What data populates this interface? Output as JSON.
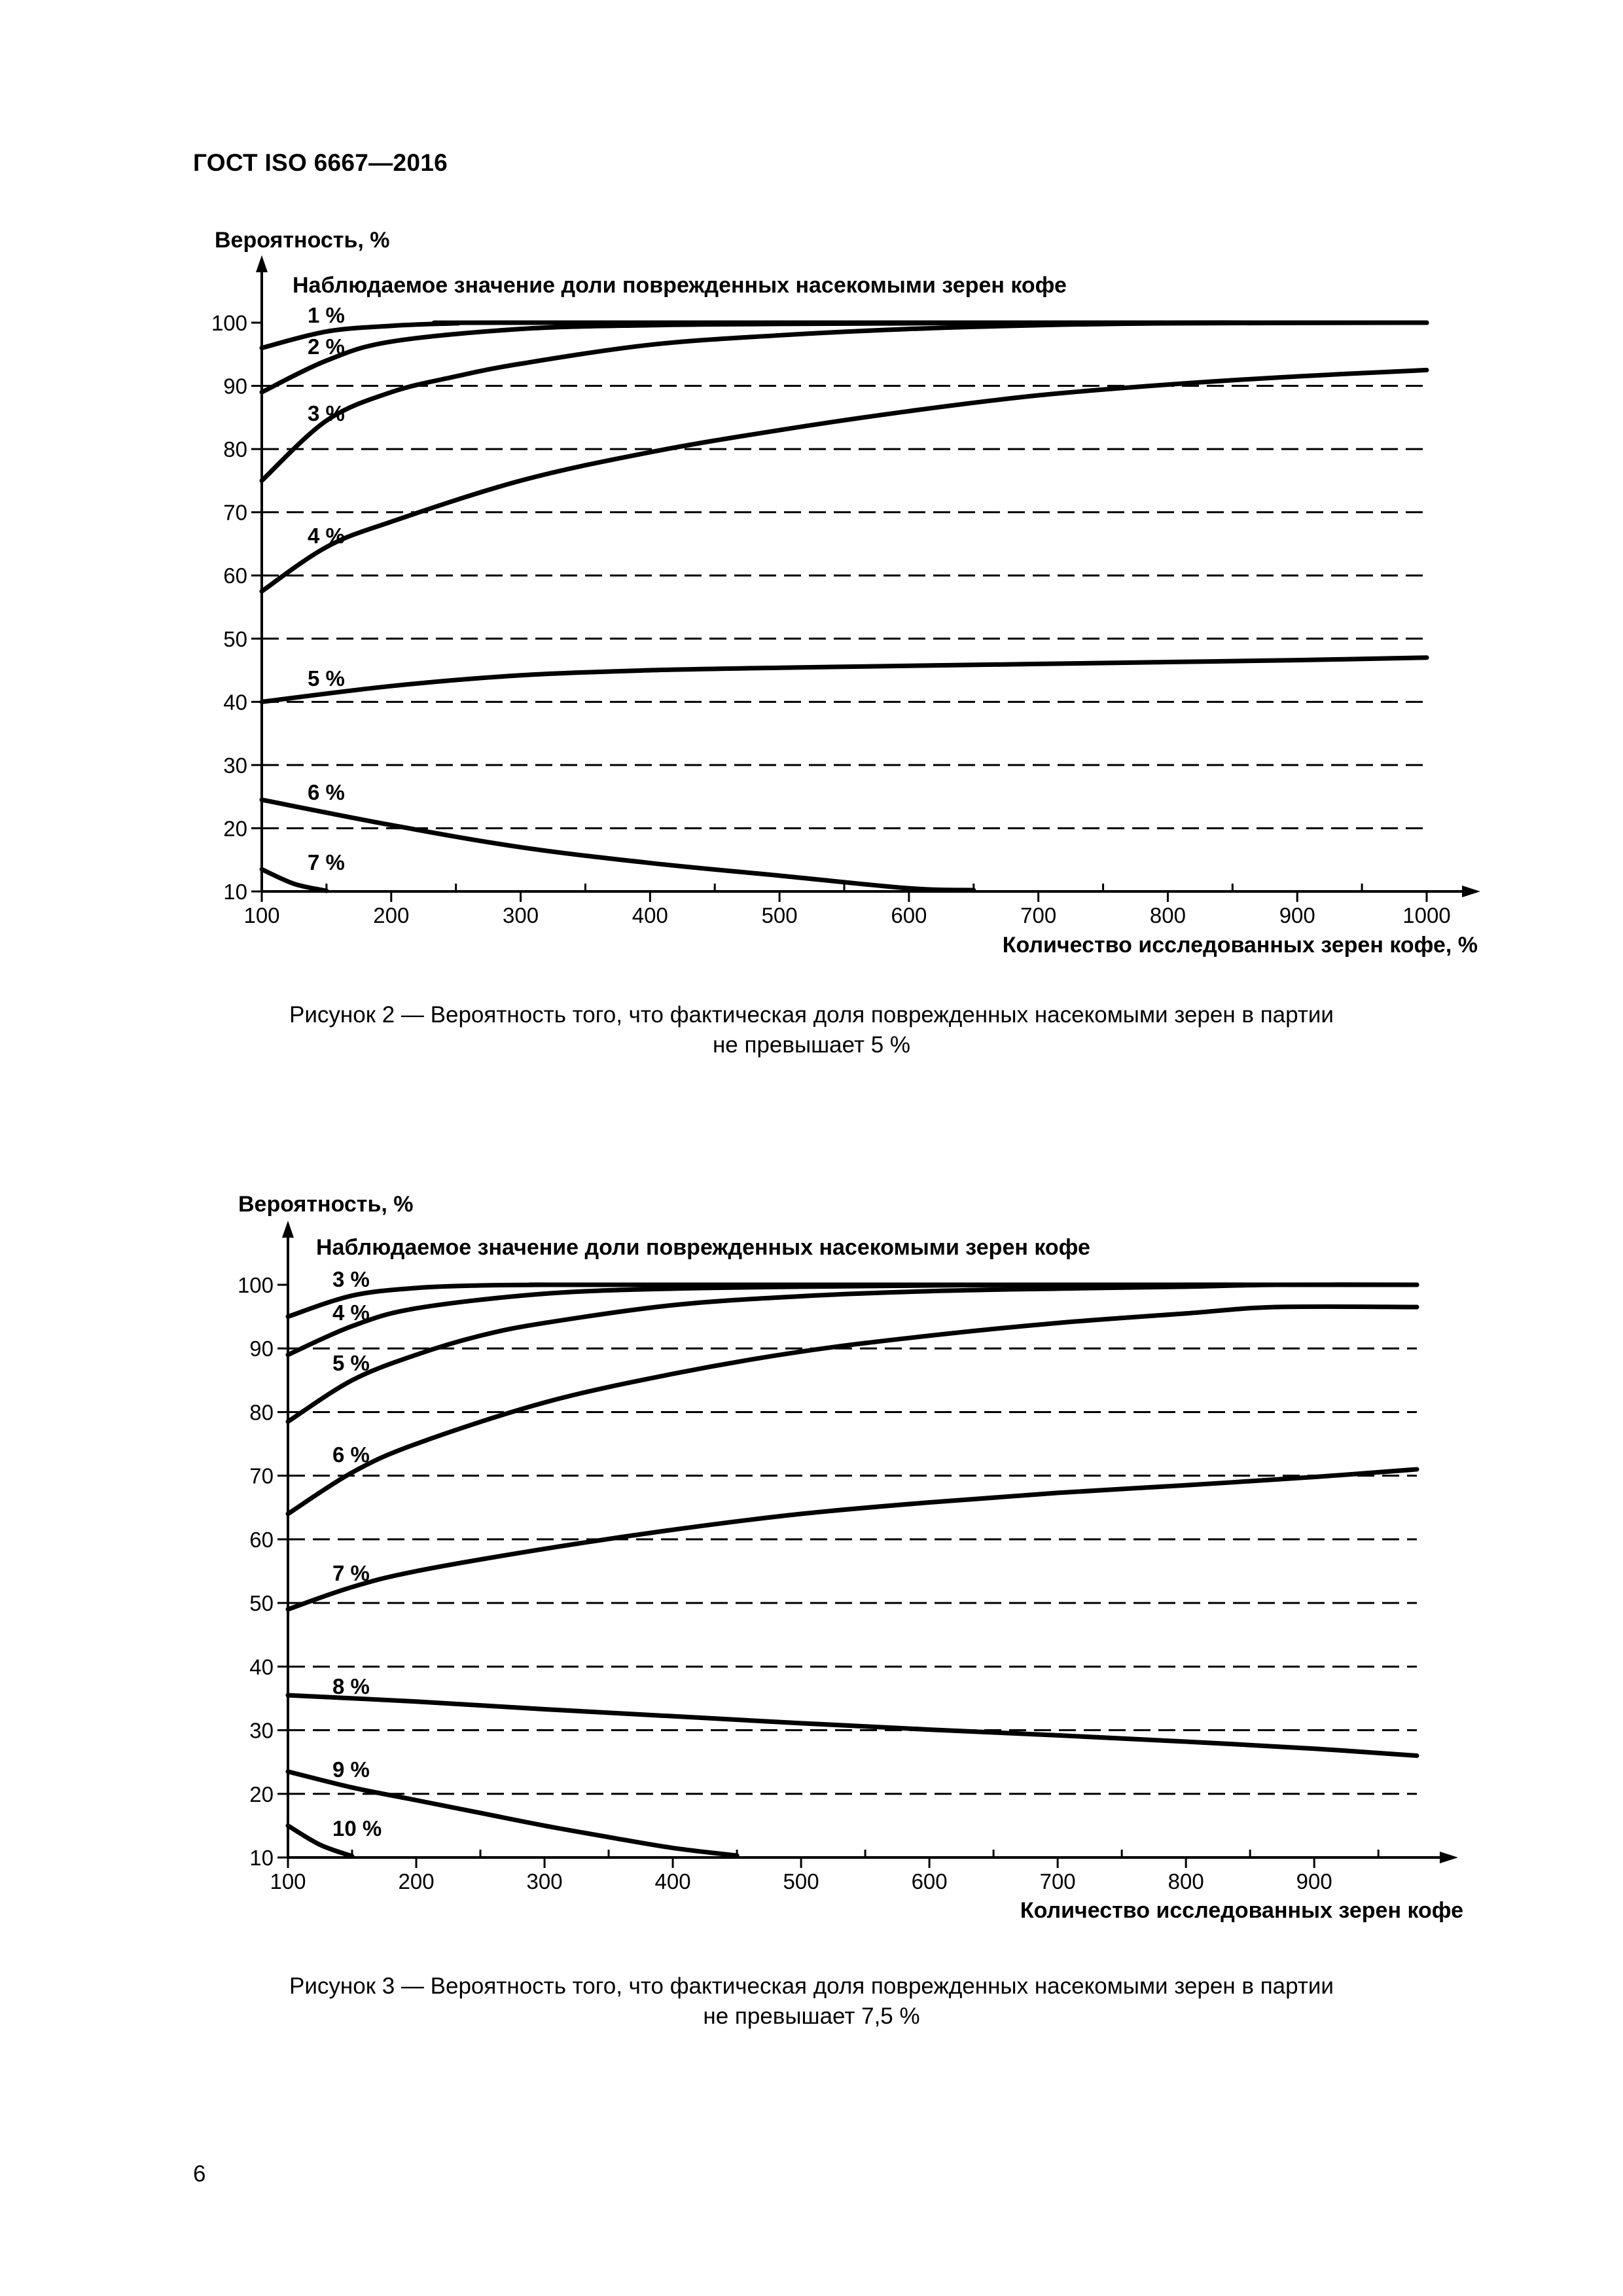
{
  "document": {
    "header": "ГОСТ ISO 6667—2016",
    "page_number": "6"
  },
  "figures": [
    {
      "caption": {
        "line1": "Рисунок 2 — Вероятность того, что фактическая доля поврежденных насекомыми зерен в партии",
        "line2": "не превышает 5 %"
      }
    },
    {
      "caption": {
        "line1": "Рисунок 3 — Вероятность того, что фактическая доля поврежденных насекомыми зерен в партии",
        "line2": "не превышает 7,5 %"
      }
    }
  ],
  "chart_data": [
    {
      "type": "line",
      "ylabel": "Вероятность, %",
      "xlabel": "Количество исследованных зерен кофе, %",
      "legend_title": "Наблюдаемое значение доли поврежденных насекомыми зерен кофе",
      "xlim": [
        100,
        1000
      ],
      "ylim": [
        10,
        100
      ],
      "xticks": [
        100,
        200,
        300,
        400,
        500,
        600,
        700,
        800,
        900,
        1000
      ],
      "yticks": [
        10,
        20,
        30,
        40,
        50,
        60,
        70,
        80,
        90,
        100
      ],
      "dashed_gridlines": [
        20,
        30,
        40,
        50,
        60,
        70,
        80,
        90
      ],
      "series": [
        {
          "name": "1 %",
          "x": [
            100,
            150,
            200,
            250,
            300,
            1000
          ],
          "y": [
            96,
            98.6,
            99.5,
            99.9,
            100,
            100
          ]
        },
        {
          "name": "2 %",
          "x": [
            100,
            150,
            200,
            300,
            400,
            500,
            600,
            700,
            1000
          ],
          "y": [
            89,
            94,
            97,
            99,
            99.6,
            99.8,
            99.9,
            100,
            100
          ]
        },
        {
          "name": "3 %",
          "x": [
            100,
            150,
            200,
            250,
            300,
            400,
            500,
            600,
            700,
            800,
            1000
          ],
          "y": [
            75,
            84.5,
            89,
            91.5,
            93.5,
            96.5,
            98,
            99,
            99.6,
            99.9,
            100
          ]
        },
        {
          "name": "4 %",
          "x": [
            100,
            150,
            200,
            300,
            400,
            500,
            600,
            700,
            800,
            900,
            1000
          ],
          "y": [
            57.5,
            64.5,
            68.5,
            75,
            79.5,
            83,
            86,
            88.5,
            90.2,
            91.5,
            92.5
          ]
        },
        {
          "name": "5 %",
          "x": [
            100,
            200,
            300,
            400,
            500,
            600,
            700,
            800,
            900,
            1000
          ],
          "y": [
            40,
            42.5,
            44.2,
            45,
            45.4,
            45.7,
            46,
            46.3,
            46.6,
            47
          ]
        },
        {
          "name": "6 %",
          "x": [
            100,
            200,
            300,
            400,
            500,
            600,
            650
          ],
          "y": [
            24.5,
            20.5,
            17,
            14.5,
            12.5,
            10.5,
            10.2
          ]
        },
        {
          "name": "7 %",
          "x": [
            100,
            125,
            150
          ],
          "y": [
            13.5,
            11.2,
            10.1
          ]
        }
      ]
    },
    {
      "type": "line",
      "ylabel": "Вероятность, %",
      "xlabel": "Количество исследованных зерен кофе",
      "legend_title": "Наблюдаемое значение доли поврежденных насекомыми зерен кофе",
      "xlim": [
        100,
        980
      ],
      "ylim": [
        10,
        100
      ],
      "xticks": [
        100,
        200,
        300,
        400,
        500,
        600,
        700,
        800,
        900
      ],
      "yticks": [
        10,
        20,
        30,
        40,
        50,
        60,
        70,
        80,
        90,
        100
      ],
      "dashed_gridlines": [
        20,
        30,
        40,
        50,
        60,
        70,
        80,
        90
      ],
      "series": [
        {
          "name": "3 %",
          "x": [
            100,
            150,
            200,
            250,
            300,
            350,
            980
          ],
          "y": [
            95,
            98.3,
            99.5,
            99.9,
            100,
            100,
            100
          ]
        },
        {
          "name": "4 %",
          "x": [
            100,
            150,
            200,
            300,
            400,
            500,
            600,
            700,
            980
          ],
          "y": [
            89,
            93.5,
            96.3,
            98.6,
            99.4,
            99.7,
            99.9,
            100,
            100
          ]
        },
        {
          "name": "5 %",
          "x": [
            100,
            150,
            200,
            250,
            300,
            400,
            500,
            600,
            700,
            800,
            870,
            980
          ],
          "y": [
            78.5,
            85,
            89,
            92,
            94,
            96.8,
            98.2,
            99,
            99.4,
            99.7,
            100,
            100
          ]
        },
        {
          "name": "6 %",
          "x": [
            100,
            150,
            200,
            300,
            400,
            500,
            600,
            700,
            800,
            870,
            980
          ],
          "y": [
            64,
            70.5,
            75,
            81.5,
            86,
            89.5,
            92,
            94,
            95.5,
            96.5,
            96.5
          ]
        },
        {
          "name": "7 %",
          "x": [
            100,
            150,
            200,
            300,
            400,
            500,
            600,
            700,
            800,
            900,
            980
          ],
          "y": [
            49,
            52.5,
            55,
            58.5,
            61.5,
            64,
            65.8,
            67.3,
            68.5,
            69.8,
            71
          ]
        },
        {
          "name": "8 %",
          "x": [
            100,
            200,
            300,
            400,
            500,
            600,
            700,
            800,
            900,
            980
          ],
          "y": [
            35.5,
            34.5,
            33.3,
            32.2,
            31.1,
            30.1,
            29.2,
            28.2,
            27.1,
            26
          ]
        },
        {
          "name": "9 %",
          "x": [
            100,
            150,
            200,
            250,
            300,
            350,
            400,
            450
          ],
          "y": [
            23.5,
            21,
            19,
            17,
            15,
            13.2,
            11.5,
            10.3
          ]
        },
        {
          "name": "10 %",
          "x": [
            100,
            125,
            150
          ],
          "y": [
            15,
            12,
            10.2
          ]
        }
      ]
    }
  ]
}
